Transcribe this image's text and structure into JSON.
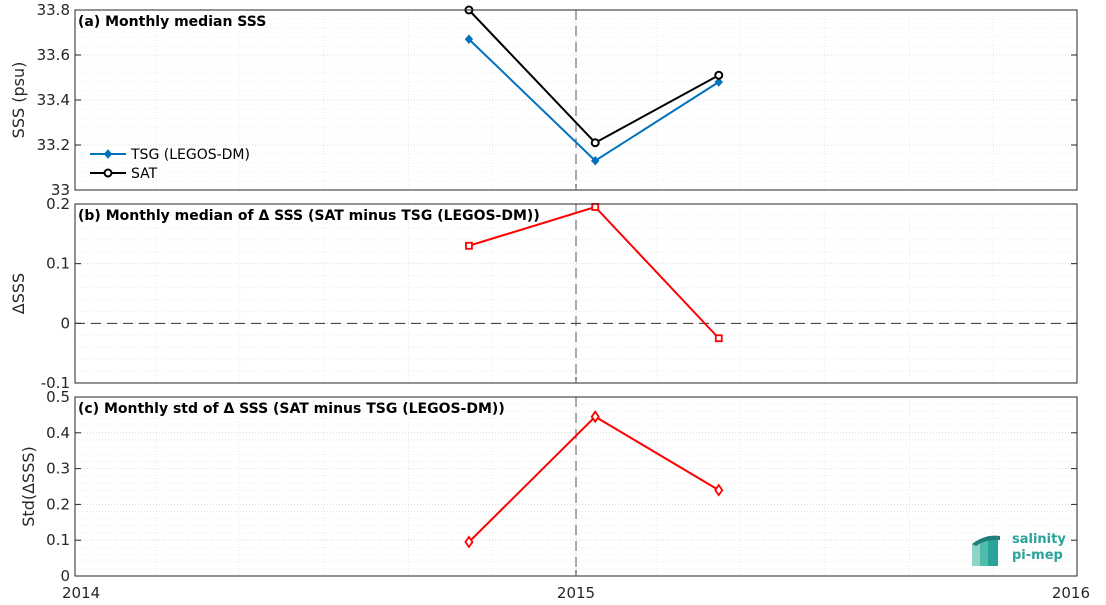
{
  "chart_data": [
    {
      "type": "line",
      "title": "(a) Monthly median SSS",
      "ylabel": "SSS (psu)",
      "ylim": [
        33,
        33.8
      ],
      "yticks": [
        33,
        33.2,
        33.4,
        33.6,
        33.8
      ],
      "yticklabels": [
        "33",
        "33.2",
        "33.4",
        "33.6",
        "33.8"
      ],
      "grid": true,
      "legend_location": "left",
      "series": [
        {
          "name": "TSG (LEGOS-DM)",
          "color": "#0072bd",
          "marker": "diamond-filled",
          "x": [
            "2014-10-15",
            "2015-01-15",
            "2015-04-15"
          ],
          "values": [
            33.67,
            33.13,
            33.48
          ]
        },
        {
          "name": "SAT",
          "color": "#000000",
          "marker": "circle",
          "x": [
            "2014-10-15",
            "2015-01-15",
            "2015-04-15"
          ],
          "values": [
            33.8,
            33.21,
            33.51
          ]
        }
      ]
    },
    {
      "type": "line",
      "title": "(b) Monthly median of Δ SSS (SAT minus TSG (LEGOS-DM))",
      "ylabel": "ΔSSS",
      "ylim": [
        -0.1,
        0.2
      ],
      "yticks": [
        -0.1,
        0,
        0.1,
        0.2
      ],
      "yticklabels": [
        "-0.1",
        "0",
        "0.1",
        "0.2"
      ],
      "grid": true,
      "zero_line": true,
      "series": [
        {
          "color": "#ff0000",
          "marker": "square",
          "x": [
            "2014-10-15",
            "2015-01-15",
            "2015-04-15"
          ],
          "values": [
            0.13,
            0.195,
            -0.025
          ]
        }
      ]
    },
    {
      "type": "line",
      "title": "(c) Monthly std of Δ SSS (SAT minus TSG (LEGOS-DM))",
      "ylabel": "Std(ΔSSS)",
      "ylim": [
        0,
        0.5
      ],
      "yticks": [
        0,
        0.1,
        0.2,
        0.3,
        0.4,
        0.5
      ],
      "yticklabels": [
        "0",
        "0.1",
        "0.2",
        "0.3",
        "0.4",
        "0.5"
      ],
      "grid": true,
      "series": [
        {
          "color": "#ff0000",
          "marker": "diamond",
          "x": [
            "2014-10-15",
            "2015-01-15",
            "2015-04-15"
          ],
          "values": [
            0.095,
            0.445,
            0.24
          ]
        }
      ]
    }
  ],
  "x_axis": {
    "range": [
      "2014-01-01",
      "2016-01-01"
    ],
    "ticks": [
      "2014-01-01",
      "2015-01-01",
      "2016-01-01"
    ],
    "tick_labels": [
      "2014",
      "2015",
      "2016"
    ],
    "vertical_marker": "2015-01-01"
  },
  "logo": {
    "line1": "salinity",
    "line2": "pi-mep",
    "color": "#2aa39a"
  }
}
